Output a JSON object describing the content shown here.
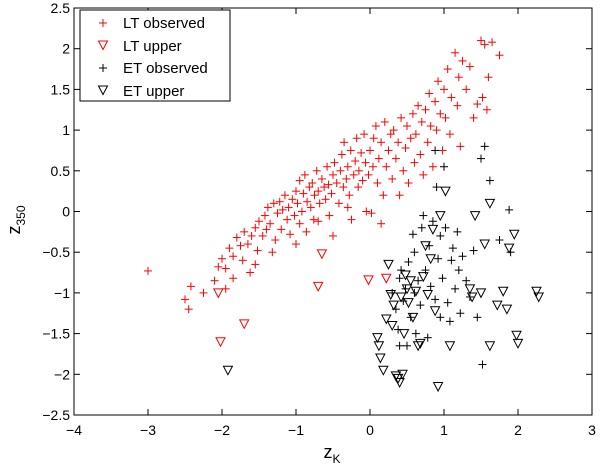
{
  "chart_data": {
    "type": "scatter",
    "title": "",
    "xlabel": {
      "base": "z",
      "sub": "K"
    },
    "ylabel": {
      "base": "z",
      "sub": "350"
    },
    "xlim": [
      -4,
      3
    ],
    "ylim": [
      -2.5,
      2.5
    ],
    "xticks": [
      "−4",
      "−3",
      "−2",
      "−1",
      "0",
      "1",
      "2",
      "3"
    ],
    "yticks": [
      "2.5",
      "2",
      "1.5",
      "1",
      "0.5",
      "0",
      "−0.5",
      "−1",
      "−1.5",
      "−2",
      "−2.5"
    ],
    "grid": false,
    "legend_position": "top-left",
    "series": [
      {
        "name": "LT observed",
        "marker": "plus",
        "color": "#ff0000",
        "points": [
          [
            -3.0,
            -0.73
          ],
          [
            -2.5,
            -1.08
          ],
          [
            -2.45,
            -1.2
          ],
          [
            -2.42,
            -0.92
          ],
          [
            -2.25,
            -1.0
          ],
          [
            -2.1,
            -0.85
          ],
          [
            -2.05,
            -0.68
          ],
          [
            -2.0,
            -0.58
          ],
          [
            -1.95,
            -0.7
          ],
          [
            -1.9,
            -0.45
          ],
          [
            -1.85,
            -0.55
          ],
          [
            -1.85,
            -0.82
          ],
          [
            -1.8,
            -0.32
          ],
          [
            -1.75,
            -0.42
          ],
          [
            -1.72,
            -0.6
          ],
          [
            -1.7,
            -0.25
          ],
          [
            -1.65,
            -0.4
          ],
          [
            -1.62,
            -0.75
          ],
          [
            -1.6,
            -0.3
          ],
          [
            -1.55,
            -0.2
          ],
          [
            -1.52,
            -0.48
          ],
          [
            -1.5,
            -0.12
          ],
          [
            -1.45,
            -0.3
          ],
          [
            -1.42,
            -0.05
          ],
          [
            -1.4,
            -0.22
          ],
          [
            -1.38,
            0.05
          ],
          [
            -1.35,
            -0.15
          ],
          [
            -1.32,
            -0.5
          ],
          [
            -1.3,
            0.1
          ],
          [
            -1.28,
            -0.35
          ],
          [
            -1.25,
            -0.02
          ],
          [
            -1.22,
            0.12
          ],
          [
            -1.2,
            -0.22
          ],
          [
            -1.18,
            0.02
          ],
          [
            -1.15,
            0.2
          ],
          [
            -1.12,
            -0.1
          ],
          [
            -1.1,
            0.05
          ],
          [
            -1.08,
            -0.28
          ],
          [
            -1.05,
            0.15
          ],
          [
            -1.02,
            -0.05
          ],
          [
            -1.0,
            0.25
          ],
          [
            -1.0,
            -0.4
          ],
          [
            -0.98,
            0.1
          ],
          [
            -0.95,
            0.38
          ],
          [
            -0.95,
            -0.15
          ],
          [
            -0.92,
            0.0
          ],
          [
            -0.9,
            0.22
          ],
          [
            -0.88,
            0.45
          ],
          [
            -0.86,
            -0.25
          ],
          [
            -0.85,
            0.12
          ],
          [
            -0.82,
            0.3
          ],
          [
            -0.8,
            0.05
          ],
          [
            -0.78,
            0.35
          ],
          [
            -0.76,
            -0.1
          ],
          [
            -0.75,
            0.2
          ],
          [
            -0.72,
            0.5
          ],
          [
            -0.7,
            0.25
          ],
          [
            -0.68,
            0.1
          ],
          [
            -0.65,
            0.4
          ],
          [
            -0.62,
            0.3
          ],
          [
            -0.6,
            0.15
          ],
          [
            -0.58,
            0.55
          ],
          [
            -0.56,
            0.33
          ],
          [
            -0.55,
            -0.05
          ],
          [
            -0.52,
            0.22
          ],
          [
            -0.5,
            0.45
          ],
          [
            -0.48,
            0.6
          ],
          [
            -0.45,
            0.35
          ],
          [
            -0.42,
            0.1
          ],
          [
            -0.4,
            0.5
          ],
          [
            -0.38,
            0.7
          ],
          [
            -0.36,
            0.3
          ],
          [
            -0.35,
            0.85
          ],
          [
            -0.32,
            0.4
          ],
          [
            -0.3,
            0.55
          ],
          [
            -0.28,
            0.2
          ],
          [
            -0.26,
            0.75
          ],
          [
            -0.25,
            -0.1
          ],
          [
            -0.22,
            0.45
          ],
          [
            -0.2,
            0.62
          ],
          [
            -0.18,
            0.9
          ],
          [
            -0.16,
            0.3
          ],
          [
            -0.15,
            0.5
          ],
          [
            -0.12,
            0.72
          ],
          [
            -0.1,
            0.38
          ],
          [
            -0.08,
            0.95
          ],
          [
            -0.06,
            0.6
          ],
          [
            -0.05,
            0.0
          ],
          [
            -0.02,
            0.45
          ],
          [
            0.0,
            0.75
          ],
          [
            0.02,
            -0.02
          ],
          [
            0.04,
            0.55
          ],
          [
            0.05,
            0.9
          ],
          [
            0.08,
            1.05
          ],
          [
            0.1,
            0.35
          ],
          [
            0.12,
            0.65
          ],
          [
            0.15,
            0.85
          ],
          [
            0.18,
            0.2
          ],
          [
            0.2,
            1.1
          ],
          [
            0.22,
            0.55
          ],
          [
            0.25,
            0.75
          ],
          [
            0.28,
            0.95
          ],
          [
            0.3,
            0.4
          ],
          [
            0.32,
            1.0
          ],
          [
            0.35,
            0.65
          ],
          [
            0.38,
            0.85
          ],
          [
            0.4,
            0.2
          ],
          [
            0.42,
            1.15
          ],
          [
            0.45,
            0.5
          ],
          [
            0.48,
            0.78
          ],
          [
            0.5,
            1.05
          ],
          [
            0.52,
            0.35
          ],
          [
            0.55,
            0.9
          ],
          [
            0.58,
            1.2
          ],
          [
            0.6,
            0.6
          ],
          [
            0.62,
            0.95
          ],
          [
            0.65,
            1.3
          ],
          [
            0.68,
            0.7
          ],
          [
            0.7,
            1.1
          ],
          [
            0.72,
            0.45
          ],
          [
            0.75,
            1.25
          ],
          [
            0.78,
            0.85
          ],
          [
            0.8,
            1.45
          ],
          [
            0.82,
            1.05
          ],
          [
            0.85,
            0.55
          ],
          [
            0.88,
            1.35
          ],
          [
            0.9,
            1.0
          ],
          [
            0.92,
            1.6
          ],
          [
            0.95,
            1.2
          ],
          [
            0.98,
            0.75
          ],
          [
            1.0,
            1.5
          ],
          [
            1.02,
            1.15
          ],
          [
            1.05,
            1.75
          ],
          [
            1.08,
            0.95
          ],
          [
            1.1,
            1.4
          ],
          [
            1.15,
            1.95
          ],
          [
            1.18,
            1.3
          ],
          [
            1.2,
            1.65
          ],
          [
            1.22,
            0.8
          ],
          [
            1.25,
            1.85
          ],
          [
            1.3,
            1.5
          ],
          [
            1.35,
            1.78
          ],
          [
            1.4,
            1.15
          ],
          [
            1.45,
            1.32
          ],
          [
            1.5,
            2.1
          ],
          [
            1.52,
            1.4
          ],
          [
            1.55,
            2.05
          ],
          [
            1.58,
            1.25
          ],
          [
            1.6,
            1.65
          ],
          [
            1.65,
            2.08
          ],
          [
            1.75,
            1.92
          ],
          [
            -0.7,
            -0.12
          ],
          [
            -0.5,
            -0.3
          ],
          [
            -0.3,
            0.05
          ],
          [
            0.15,
            -0.15
          ],
          [
            -1.55,
            -0.65
          ],
          [
            -1.95,
            -0.95
          ]
        ]
      },
      {
        "name": "LT upper",
        "marker": "triangle-down",
        "color": "#ff0000",
        "points": [
          [
            -2.05,
            -1.0
          ],
          [
            -2.02,
            -1.6
          ],
          [
            -1.7,
            -1.38
          ],
          [
            -0.7,
            -0.92
          ],
          [
            -0.65,
            -0.52
          ],
          [
            -0.02,
            -0.84
          ],
          [
            0.22,
            -0.82
          ]
        ]
      },
      {
        "name": "ET observed",
        "marker": "plus",
        "color": "#000000",
        "points": [
          [
            0.3,
            -1.0
          ],
          [
            0.35,
            -1.2
          ],
          [
            0.38,
            -1.45
          ],
          [
            0.4,
            -0.82
          ],
          [
            0.42,
            -0.72
          ],
          [
            0.45,
            -1.1
          ],
          [
            0.48,
            -0.95
          ],
          [
            0.5,
            -1.65
          ],
          [
            0.52,
            -0.62
          ],
          [
            0.55,
            -1.3
          ],
          [
            0.58,
            -0.28
          ],
          [
            0.6,
            -0.5
          ],
          [
            0.62,
            -1.5
          ],
          [
            0.65,
            -0.85
          ],
          [
            0.68,
            -1.15
          ],
          [
            0.7,
            -0.2
          ],
          [
            0.72,
            -0.05
          ],
          [
            0.75,
            -0.72
          ],
          [
            0.78,
            -1.55
          ],
          [
            0.8,
            -0.42
          ],
          [
            0.82,
            -0.92
          ],
          [
            0.85,
            -0.12
          ],
          [
            0.88,
            -1.08
          ],
          [
            0.9,
            0.3
          ],
          [
            0.92,
            -0.58
          ],
          [
            0.95,
            -0.3
          ],
          [
            0.98,
            -0.82
          ],
          [
            1.0,
            0.55
          ],
          [
            1.02,
            -0.2
          ],
          [
            1.05,
            -1.12
          ],
          [
            1.08,
            -1.35
          ],
          [
            1.1,
            -0.6
          ],
          [
            1.12,
            -0.45
          ],
          [
            1.15,
            -0.95
          ],
          [
            1.18,
            -0.25
          ],
          [
            1.2,
            -0.72
          ],
          [
            1.22,
            -1.25
          ],
          [
            1.25,
            -0.55
          ],
          [
            1.3,
            -0.85
          ],
          [
            1.35,
            -1.05
          ],
          [
            1.4,
            -0.48
          ],
          [
            1.45,
            -1.3
          ],
          [
            1.5,
            0.65
          ],
          [
            1.55,
            0.8
          ],
          [
            1.52,
            -1.88
          ],
          [
            1.62,
            0.38
          ],
          [
            1.75,
            -0.35
          ],
          [
            1.88,
            0.02
          ],
          [
            1.9,
            -0.5
          ],
          [
            0.88,
            0.75
          ],
          [
            0.95,
            -1.3
          ],
          [
            0.4,
            -1.65
          ],
          [
            0.6,
            -1.0
          ]
        ]
      },
      {
        "name": "ET upper",
        "marker": "triangle-down",
        "color": "#000000",
        "points": [
          [
            -1.92,
            -1.95
          ],
          [
            0.1,
            -1.55
          ],
          [
            0.12,
            -1.65
          ],
          [
            0.14,
            -1.8
          ],
          [
            0.18,
            -1.95
          ],
          [
            0.22,
            -1.32
          ],
          [
            0.25,
            -0.65
          ],
          [
            0.28,
            -1.02
          ],
          [
            0.3,
            -1.4
          ],
          [
            0.32,
            -1.15
          ],
          [
            0.35,
            -2.02
          ],
          [
            0.38,
            -2.05
          ],
          [
            0.4,
            -2.1
          ],
          [
            0.42,
            -1.05
          ],
          [
            0.44,
            -2.0
          ],
          [
            0.46,
            -1.5
          ],
          [
            0.48,
            -0.78
          ],
          [
            0.5,
            -0.95
          ],
          [
            0.52,
            -1.12
          ],
          [
            0.55,
            -0.85
          ],
          [
            0.58,
            -1.3
          ],
          [
            0.62,
            -0.98
          ],
          [
            0.65,
            -1.65
          ],
          [
            0.68,
            -1.62
          ],
          [
            0.72,
            -0.8
          ],
          [
            0.75,
            -0.42
          ],
          [
            0.78,
            -1.02
          ],
          [
            0.82,
            -0.58
          ],
          [
            0.85,
            -0.22
          ],
          [
            0.88,
            -1.22
          ],
          [
            0.92,
            -2.15
          ],
          [
            0.95,
            -0.05
          ],
          [
            1.02,
            0.25
          ],
          [
            1.08,
            -1.65
          ],
          [
            1.35,
            -0.95
          ],
          [
            1.38,
            -1.05
          ],
          [
            1.42,
            -0.05
          ],
          [
            1.5,
            -1.0
          ],
          [
            1.55,
            -0.4
          ],
          [
            1.62,
            -1.65
          ],
          [
            1.72,
            -1.15
          ],
          [
            1.85,
            -1.2
          ],
          [
            1.88,
            -0.45
          ],
          [
            1.95,
            -0.28
          ],
          [
            1.98,
            -1.52
          ],
          [
            2.0,
            -1.62
          ],
          [
            2.25,
            -0.98
          ],
          [
            2.28,
            -1.05
          ],
          [
            1.62,
            0.1
          ],
          [
            1.8,
            -0.98
          ]
        ]
      }
    ]
  }
}
